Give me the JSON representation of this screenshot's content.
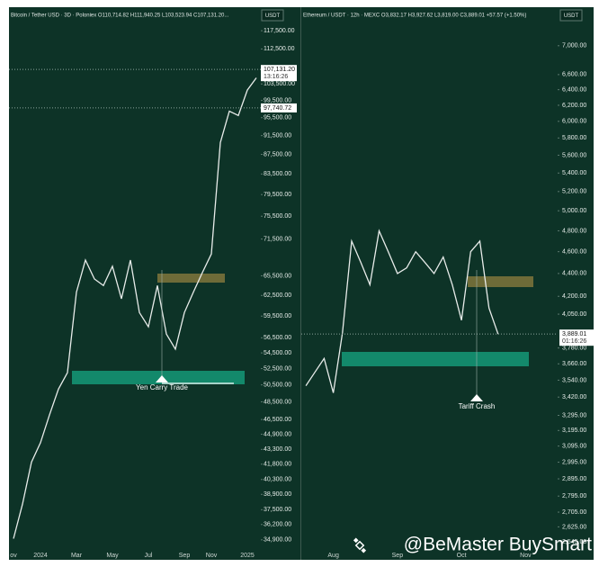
{
  "watermark": "@BeMaster BuySmart",
  "chart_data": [
    {
      "type": "line",
      "title": "Bitcoin / Tether USD · 3D · Poloniex  O110,714.82 H111,940.25 L103,523.94 C107,131.20...",
      "currency": "USDT",
      "categories": [
        "ov",
        null,
        null,
        "2024",
        null,
        null,
        null,
        "Mar",
        null,
        null,
        null,
        "May",
        null,
        null,
        null,
        "Jul",
        null,
        null,
        null,
        "Sep",
        null,
        null,
        "Nov",
        null,
        null,
        null,
        "2025",
        null
      ],
      "series": [
        {
          "color": "#e8ecea",
          "values": [
            35000,
            38000,
            42000,
            44000,
            47000,
            50000,
            52000,
            63000,
            68000,
            65000,
            64000,
            67000,
            62000,
            68000,
            60000,
            58000,
            64000,
            57000,
            55000,
            60000,
            63000,
            66000,
            69000,
            90000,
            97000,
            96000,
            102000,
            105000
          ]
        }
      ],
      "log_scale": true,
      "ylim": [
        34000,
        120600
      ],
      "yticks": [
        {
          "value": 117500,
          "label": "117,500.00"
        },
        {
          "value": 112500,
          "label": "112,500.00"
        },
        {
          "value": 103500,
          "label": "103,500.00"
        },
        {
          "value": 99500,
          "label": "99,500.00"
        },
        {
          "value": 95500,
          "label": "95,500.00"
        },
        {
          "value": 91500,
          "label": "91,500.00"
        },
        {
          "value": 87500,
          "label": "87,500.00"
        },
        {
          "value": 83500,
          "label": "83,500.00"
        },
        {
          "value": 79500,
          "label": "79,500.00"
        },
        {
          "value": 75500,
          "label": "75,500.00"
        },
        {
          "value": 71500,
          "label": "71,500.00"
        },
        {
          "value": 65500,
          "label": "65,500.00"
        },
        {
          "value": 62500,
          "label": "62,500.00"
        },
        {
          "value": 59500,
          "label": "59,500.00"
        },
        {
          "value": 56500,
          "label": "56,500.00"
        },
        {
          "value": 54500,
          "label": "54,500.00"
        },
        {
          "value": 52500,
          "label": "52,500.00"
        },
        {
          "value": 50500,
          "label": "50,500.00"
        },
        {
          "value": 48500,
          "label": "48,500.00"
        },
        {
          "value": 46500,
          "label": "46,500.00"
        },
        {
          "value": 44900,
          "label": "44,900.00"
        },
        {
          "value": 43300,
          "label": "43,300.00"
        },
        {
          "value": 41800,
          "label": "41,800.00"
        },
        {
          "value": 40300,
          "label": "40,300.00"
        },
        {
          "value": 38900,
          "label": "38,900.00"
        },
        {
          "value": 37500,
          "label": "37,500.00"
        },
        {
          "value": 36200,
          "label": "36,200.00"
        },
        {
          "value": 34900,
          "label": "34,900.00"
        }
      ],
      "price_labels": [
        {
          "value": 107131.2,
          "label": "107,131.20"
        },
        {
          "value": 97740.72,
          "label": "97,740.72"
        }
      ],
      "countdown": "13:16:26",
      "annotation": "Yen Carry Trade"
    },
    {
      "type": "line",
      "title": "Ethereum / USDT · 12h · MEXC  O3,832.17 H3,927.62 L3,819.00 C3,889.01 +57.57 (+1.50%)",
      "currency": "USDT",
      "categories": [
        null,
        null,
        null,
        "Aug",
        null,
        null,
        null,
        null,
        null,
        null,
        "Sep",
        null,
        null,
        null,
        null,
        null,
        null,
        "Oct",
        null,
        null,
        null,
        null,
        null,
        null,
        "Nov",
        null,
        null,
        null
      ],
      "series": [
        {
          "color": "#e8ecea",
          "values": [
            3500,
            3600,
            3700,
            3450,
            3900,
            4700,
            4500,
            4300,
            4800,
            4600,
            4400,
            4450,
            4600,
            4500,
            4400,
            4550,
            4300,
            4000,
            4600,
            4700,
            4100,
            3889.01,
            null,
            null,
            null,
            null,
            null,
            null
          ]
        }
      ],
      "log_scale": true,
      "ylim": [
        2500,
        7380
      ],
      "yticks": [
        {
          "value": 7000,
          "label": "7,000.00"
        },
        {
          "value": 6600,
          "label": "6,600.00"
        },
        {
          "value": 6400,
          "label": "6,400.00"
        },
        {
          "value": 6200,
          "label": "6,200.00"
        },
        {
          "value": 6000,
          "label": "6,000.00"
        },
        {
          "value": 5800,
          "label": "5,800.00"
        },
        {
          "value": 5600,
          "label": "5,600.00"
        },
        {
          "value": 5400,
          "label": "5,400.00"
        },
        {
          "value": 5200,
          "label": "5,200.00"
        },
        {
          "value": 5000,
          "label": "5,000.00"
        },
        {
          "value": 4800,
          "label": "4,800.00"
        },
        {
          "value": 4600,
          "label": "4,600.00"
        },
        {
          "value": 4400,
          "label": "4,400.00"
        },
        {
          "value": 4200,
          "label": "4,200.00"
        },
        {
          "value": 4050,
          "label": "4,050.00"
        },
        {
          "value": 3780,
          "label": "3,780.00"
        },
        {
          "value": 3660,
          "label": "3,660.00"
        },
        {
          "value": 3540,
          "label": "3,540.00"
        },
        {
          "value": 3420,
          "label": "3,420.00"
        },
        {
          "value": 3295,
          "label": "3,295.00"
        },
        {
          "value": 3195,
          "label": "3,195.00"
        },
        {
          "value": 3095,
          "label": "3,095.00"
        },
        {
          "value": 2995,
          "label": "2,995.00"
        },
        {
          "value": 2895,
          "label": "2,895.00"
        },
        {
          "value": 2795,
          "label": "2,795.00"
        },
        {
          "value": 2705,
          "label": "2,705.00"
        },
        {
          "value": 2625,
          "label": "2,625.00"
        },
        {
          "value": 2545,
          "label": "2,545.00"
        }
      ],
      "price_labels": [
        {
          "value": 3889.01,
          "label": "3,889.01"
        }
      ],
      "countdown": "01:16:26",
      "annotation": "Tariff Crash"
    }
  ]
}
